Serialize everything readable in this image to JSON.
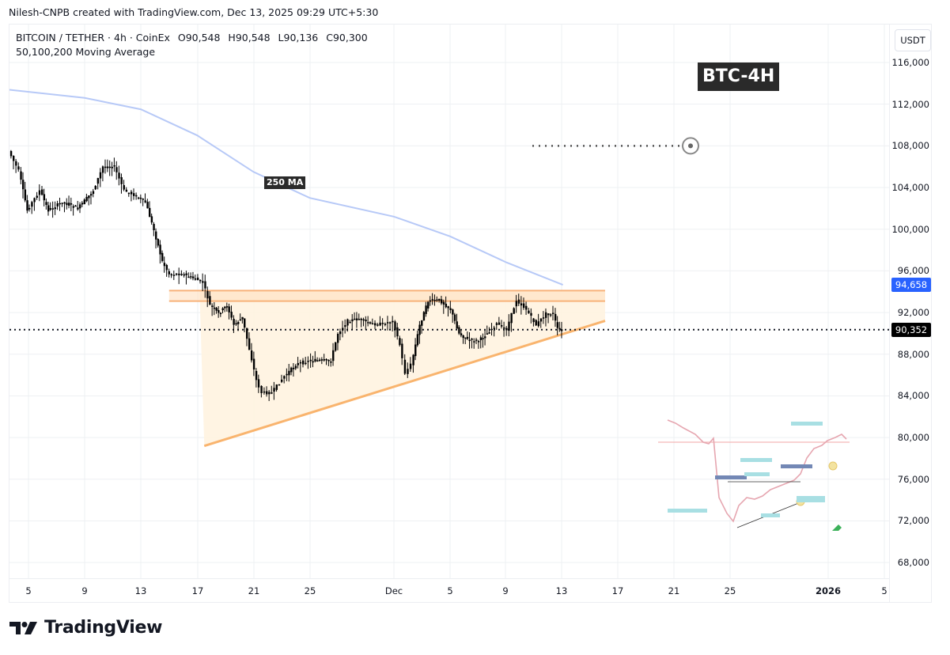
{
  "credit": "Nilesh-CNPB created with TradingView.com, Dec 13, 2025 09:29 UTC+5:30",
  "legend": {
    "symbol": "BITCOIN / TETHER · 4h · CoinEx",
    "open": "O90,548",
    "high": "H90,548",
    "low": "L90,136",
    "close": "C90,300",
    "indicator": "50,100,200 Moving Average"
  },
  "price_axis": {
    "currency": "USDT",
    "ticks": [
      "116,000",
      "112,000",
      "108,000",
      "104,000",
      "100,000",
      "96,000",
      "92,000",
      "88,000",
      "84,000",
      "80,000",
      "76,000",
      "72,000",
      "68,000"
    ],
    "ma_tag": "94,658",
    "last_price_tag": "90,352",
    "ma_color": "#2962ff",
    "last_color": "#000000"
  },
  "time_axis": {
    "ticks": [
      {
        "label": "5",
        "bold": false
      },
      {
        "label": "9",
        "bold": false
      },
      {
        "label": "13",
        "bold": false
      },
      {
        "label": "17",
        "bold": false
      },
      {
        "label": "21",
        "bold": false
      },
      {
        "label": "25",
        "bold": false
      },
      {
        "label": "Dec",
        "bold": false
      },
      {
        "label": "5",
        "bold": false
      },
      {
        "label": "9",
        "bold": false
      },
      {
        "label": "13",
        "bold": false
      },
      {
        "label": "17",
        "bold": false
      },
      {
        "label": "21",
        "bold": false
      },
      {
        "label": "25",
        "bold": false
      },
      {
        "label": "2026",
        "bold": true
      },
      {
        "label": "5",
        "bold": false
      }
    ]
  },
  "annotations": {
    "title_tag": "BTC-4H",
    "ma_label": "250 MA",
    "target_price": 108000
  },
  "branding": {
    "logo_text": "TradingView"
  },
  "chart_data": {
    "type": "line",
    "title": "BITCOIN / TETHER · 4h · CoinEx",
    "xlabel": "",
    "ylabel": "USDT",
    "ylim": [
      66000,
      118000
    ],
    "grid": true,
    "legend_position": "top-left",
    "x_ticks": [
      "Nov 5",
      "Nov 9",
      "Nov 13",
      "Nov 17",
      "Nov 21",
      "Nov 25",
      "Dec",
      "Dec 5",
      "Dec 9",
      "Dec 13",
      "Dec 17",
      "Dec 21",
      "Dec 25",
      "2026",
      "Jan 5"
    ],
    "series": [
      {
        "name": "BTC/USDT close (approx.)",
        "x": [
          "Nov 3.7",
          "Nov 4.4",
          "Nov 5",
          "Nov 5.9",
          "Nov 6.5",
          "Nov 7.5",
          "Nov 8.6",
          "Nov 9.7",
          "Nov 10.4",
          "Nov 11.2",
          "Nov 11.9",
          "Nov 12.6",
          "Nov 13.4",
          "Nov 14",
          "Nov 14.6",
          "Nov 15.1",
          "Nov 16",
          "Nov 16.8",
          "Nov 17.5",
          "Nov 18",
          "Nov 18.6",
          "Nov 19.2",
          "Nov 19.7",
          "Nov 20.3",
          "Nov 20.8",
          "Nov 21.3",
          "Nov 21.7",
          "Nov 22.4",
          "Nov 23.3",
          "Nov 24.1",
          "Nov 25",
          "Nov 25.8",
          "Nov 26.6",
          "Nov 27.1",
          "Nov 27.8",
          "Nov 28.6",
          "Nov 29.4",
          "Nov 30.3",
          "Dec 1",
          "Dec 1.5",
          "Dec 1.9",
          "Dec 2.3",
          "Dec 2.9",
          "Dec 3.5",
          "Dec 4.3",
          "Dec 5.1",
          "Dec 5.7",
          "Dec 6.3",
          "Dec 7.1",
          "Dec 7.7",
          "Dec 8.4",
          "Dec 9.1",
          "Dec 9.8",
          "Dec 10.5",
          "Dec 11.2",
          "Dec 11.9",
          "Dec 12.4",
          "Dec 12.7",
          "Dec 13"
        ],
        "values": [
          107500,
          105600,
          101800,
          103700,
          101800,
          102600,
          102000,
          103700,
          106000,
          106000,
          103700,
          103300,
          102600,
          99900,
          96900,
          95700,
          95700,
          95300,
          94900,
          92700,
          91900,
          92700,
          90800,
          91500,
          88500,
          85500,
          84300,
          84300,
          85900,
          87000,
          87400,
          87400,
          87400,
          90000,
          91200,
          91400,
          90900,
          90900,
          91200,
          88900,
          86200,
          87000,
          90800,
          93100,
          93200,
          92300,
          90000,
          89400,
          89300,
          90000,
          90900,
          90400,
          93200,
          92300,
          90800,
          91900,
          91900,
          90400,
          90300
        ]
      },
      {
        "name": "250 MA",
        "x": [
          "Nov 3.5",
          "Nov 9",
          "Nov 13",
          "Nov 17",
          "Nov 21",
          "Nov 25",
          "Dec 1",
          "Dec 5",
          "Dec 9",
          "Dec 13"
        ],
        "values": [
          113400,
          112600,
          111500,
          109000,
          105500,
          103000,
          101200,
          99300,
          96800,
          94658
        ]
      }
    ],
    "annotations": [
      {
        "type": "rectangle",
        "label": "resistance zone",
        "y_range": [
          93100,
          94100
        ],
        "x_range": [
          "Nov 15",
          "Dec 16"
        ]
      },
      {
        "type": "trendline",
        "label": "ascending support",
        "from": {
          "x": "Nov 17.5",
          "y": 79200
        },
        "to": {
          "x": "Dec 16",
          "y": 91200
        }
      },
      {
        "type": "target",
        "label": "target",
        "y": 108000,
        "x_range": [
          "Dec 9",
          "Dec 25"
        ]
      },
      {
        "type": "horizontal",
        "label": "last price",
        "y": 90352
      },
      {
        "type": "text",
        "label": "250 MA"
      },
      {
        "type": "text",
        "label": "BTC-4H"
      }
    ],
    "last_price": 90352,
    "ma_value": 94658
  }
}
